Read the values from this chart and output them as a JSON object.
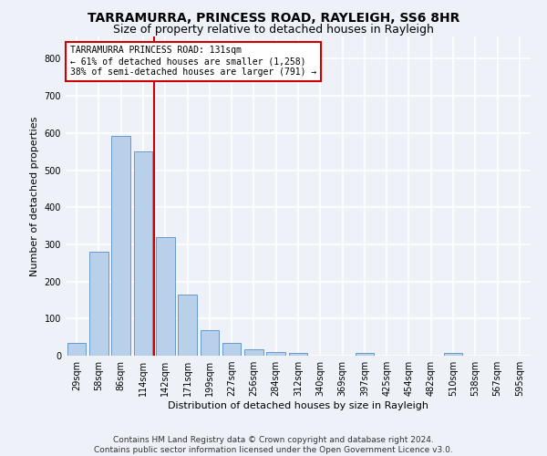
{
  "title": "TARRAMURRA, PRINCESS ROAD, RAYLEIGH, SS6 8HR",
  "subtitle": "Size of property relative to detached houses in Rayleigh",
  "xlabel": "Distribution of detached houses by size in Rayleigh",
  "ylabel": "Number of detached properties",
  "categories": [
    "29sqm",
    "58sqm",
    "86sqm",
    "114sqm",
    "142sqm",
    "171sqm",
    "199sqm",
    "227sqm",
    "256sqm",
    "284sqm",
    "312sqm",
    "340sqm",
    "369sqm",
    "397sqm",
    "425sqm",
    "454sqm",
    "482sqm",
    "510sqm",
    "538sqm",
    "567sqm",
    "595sqm"
  ],
  "values": [
    35,
    280,
    593,
    550,
    320,
    165,
    68,
    35,
    18,
    10,
    8,
    0,
    0,
    8,
    0,
    0,
    0,
    8,
    0,
    0,
    0
  ],
  "bar_color": "#b8d0ea",
  "bar_edge_color": "#6699cc",
  "vline_color": "#cc0000",
  "annotation_text": "TARRAMURRA PRINCESS ROAD: 131sqm\n← 61% of detached houses are smaller (1,258)\n38% of semi-detached houses are larger (791) →",
  "annotation_box_color": "#ffffff",
  "annotation_box_edge": "#cc0000",
  "ylim": [
    0,
    860
  ],
  "yticks": [
    0,
    100,
    200,
    300,
    400,
    500,
    600,
    700,
    800
  ],
  "footer": "Contains HM Land Registry data © Crown copyright and database right 2024.\nContains public sector information licensed under the Open Government Licence v3.0.",
  "background_color": "#eef2f8",
  "plot_bg_color": "#eef2f8",
  "grid_color": "#ffffff",
  "title_fontsize": 10,
  "subtitle_fontsize": 9,
  "label_fontsize": 8,
  "tick_fontsize": 7,
  "footer_fontsize": 6.5
}
